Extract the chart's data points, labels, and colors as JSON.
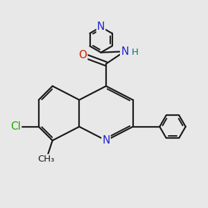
{
  "bg_color": "#e8e8e8",
  "bond_color": "#1a1a1a",
  "bond_width": 1.6,
  "atom_colors": {
    "N_quin": "#2222cc",
    "N_amide": "#2222cc",
    "N_py": "#2222cc",
    "O": "#cc2200",
    "Cl": "#22aa00",
    "H": "#007777",
    "C": "#1a1a1a"
  },
  "figsize": [
    3.0,
    3.0
  ],
  "dpi": 100,
  "xlim": [
    0,
    10
  ],
  "ylim": [
    0,
    10
  ]
}
